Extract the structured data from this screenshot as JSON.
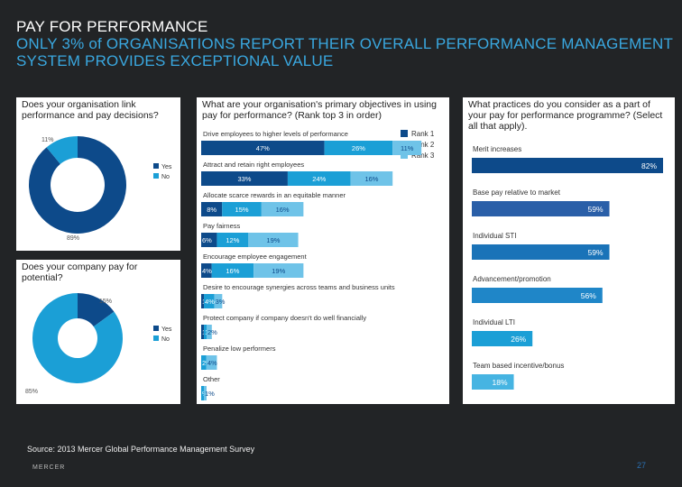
{
  "header": {
    "title": "PAY FOR PERFORMANCE",
    "subtitle": "ONLY 3% of ORGANISATIONS REPORT THEIR OVERALL PERFORMANCE MANAGEMENT SYSTEM PROVIDES EXCEPTIONAL VALUE"
  },
  "colors": {
    "background": "#222426",
    "dark_blue": "#0d4a8a",
    "mid_blue": "#1b9fd6",
    "light_blue": "#6fc3e8",
    "accent": "#3aa8e0"
  },
  "questions": {
    "q1": "Does your organisation link performance and pay decisions?",
    "q2": "Does your company pay for potential?",
    "q3": "What are your organisation's primary objectives in using pay for performance? (Rank top 3 in order)",
    "q4": "What practices do you consider as a part of your pay for performance programme? (Select all that apply)."
  },
  "chart_data": [
    {
      "type": "pie",
      "title": "Does your organisation link performance and pay decisions?",
      "categories": [
        "Yes",
        "No"
      ],
      "values": [
        89,
        11
      ],
      "labels": [
        "89%",
        "11%"
      ],
      "legend": [
        "Yes",
        "No"
      ]
    },
    {
      "type": "pie",
      "title": "Does your company pay for potential?",
      "categories": [
        "Yes",
        "No"
      ],
      "values": [
        15,
        85
      ],
      "labels": [
        "15%",
        "85%"
      ],
      "legend": [
        "Yes",
        "No"
      ]
    },
    {
      "type": "bar",
      "orientation": "horizontal-stacked",
      "title": "What are your organisation's primary objectives in using pay for performance? (Rank top 3 in order)",
      "legend": [
        "Rank 1",
        "Rank 2",
        "Rank 3"
      ],
      "categories": [
        "Drive employees to higher levels of performance",
        "Attract and retain right employees",
        "Allocate scarce rewards in an equitable manner",
        "Pay fairness",
        "Encourage employee engagement",
        "Desire to encourage synergies across teams and business units",
        "Protect company if company doesn't do well financially",
        "Penalize low performers",
        "Other"
      ],
      "series": [
        {
          "name": "Rank 1",
          "values": [
            47,
            33,
            8,
            6,
            4,
            1,
            1,
            0,
            0
          ]
        },
        {
          "name": "Rank 2",
          "values": [
            26,
            24,
            15,
            12,
            16,
            4,
            1,
            2,
            1
          ]
        },
        {
          "name": "Rank 3",
          "values": [
            11,
            16,
            16,
            19,
            19,
            3,
            2,
            4,
            1
          ]
        }
      ],
      "bar_labels": [
        [
          "47%",
          "26%",
          "11%"
        ],
        [
          "33%",
          "24%",
          "16%"
        ],
        [
          "8%",
          "15%",
          "16%"
        ],
        [
          "6%",
          "12%",
          "19%"
        ],
        [
          "4%",
          "16%",
          "19%"
        ],
        [
          "1%",
          "4%",
          "3%"
        ],
        [
          "1%",
          "1%",
          "2%"
        ],
        [
          "",
          "2%",
          "4%"
        ],
        [
          "",
          "%",
          "1%"
        ]
      ]
    },
    {
      "type": "bar",
      "orientation": "horizontal",
      "title": "What practices do you consider as a part of your pay for performance programme? (Select all that apply).",
      "categories": [
        "Merit increases",
        "Base pay relative to market",
        "Individual STI",
        "Advancement/promotion",
        "Individual LTI",
        "Team based incentive/bonus"
      ],
      "values": [
        82,
        59,
        59,
        56,
        26,
        18
      ],
      "labels": [
        "82%",
        "59%",
        "59%",
        "56%",
        "26%",
        "18%"
      ]
    }
  ],
  "footer": {
    "source": "Source: 2013 Mercer Global Performance Management Survey",
    "logo": "MERCER",
    "page": "27"
  }
}
